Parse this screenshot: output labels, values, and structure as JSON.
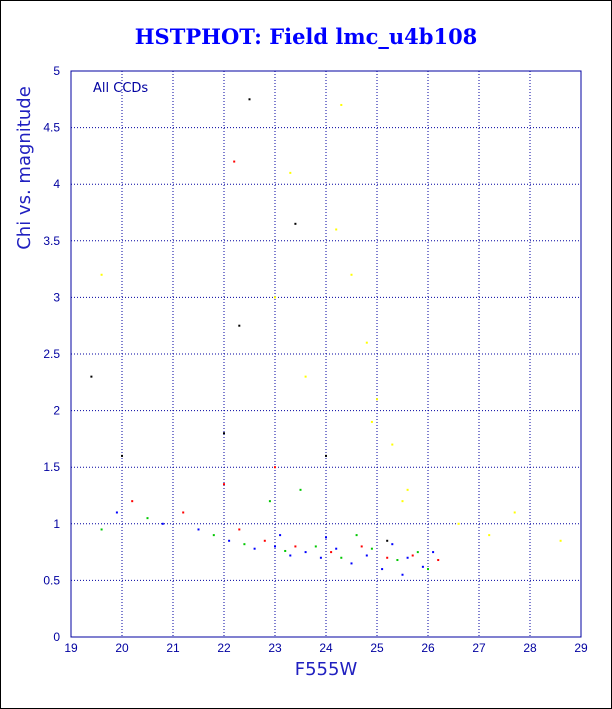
{
  "colors": {
    "title": "#0000ff",
    "axes": "#0000a0",
    "grid": "#0000a0",
    "points": [
      "#0000ff",
      "#00c800",
      "#ff0000",
      "#ffff00",
      "#000000"
    ]
  },
  "chart_data": {
    "type": "scatter",
    "title": "HSTPHOT: Field lmc_u4b108",
    "xlabel": "F555W",
    "ylabel": "Chi vs. magnitude",
    "annotation": "All CCDs",
    "xlim": [
      19,
      29
    ],
    "ylim": [
      0,
      5
    ],
    "xticks": [
      19,
      20,
      21,
      22,
      23,
      24,
      25,
      26,
      27,
      28,
      29
    ],
    "yticks": [
      "0",
      "0.5",
      "1",
      "1.5",
      "2",
      "2.5",
      "3",
      "3.5",
      "4",
      "4.5",
      "5"
    ],
    "grid": true,
    "series": [
      {
        "color": "#0000ff",
        "points": [
          [
            22.1,
            0.85
          ],
          [
            22.6,
            0.78
          ],
          [
            23.0,
            0.8
          ],
          [
            23.3,
            0.72
          ],
          [
            23.6,
            0.75
          ],
          [
            23.9,
            0.7
          ],
          [
            24.2,
            0.78
          ],
          [
            24.5,
            0.65
          ],
          [
            24.8,
            0.72
          ],
          [
            25.1,
            0.6
          ],
          [
            25.3,
            0.82
          ],
          [
            25.6,
            0.7
          ],
          [
            25.9,
            0.62
          ],
          [
            26.1,
            0.75
          ],
          [
            21.5,
            0.95
          ],
          [
            20.8,
            1.0
          ],
          [
            19.9,
            1.1
          ],
          [
            23.1,
            0.9
          ],
          [
            24.0,
            0.88
          ],
          [
            25.5,
            0.55
          ]
        ]
      },
      {
        "color": "#00c800",
        "points": [
          [
            21.8,
            0.9
          ],
          [
            22.4,
            0.82
          ],
          [
            23.2,
            0.76
          ],
          [
            23.8,
            0.8
          ],
          [
            24.3,
            0.7
          ],
          [
            24.9,
            0.78
          ],
          [
            25.4,
            0.68
          ],
          [
            25.8,
            0.75
          ],
          [
            26.0,
            0.6
          ],
          [
            20.5,
            1.05
          ],
          [
            19.6,
            0.95
          ],
          [
            22.9,
            1.2
          ],
          [
            23.5,
            1.3
          ],
          [
            24.6,
            0.9
          ]
        ]
      },
      {
        "color": "#ff0000",
        "points": [
          [
            22.3,
            0.95
          ],
          [
            22.8,
            0.85
          ],
          [
            23.4,
            0.8
          ],
          [
            24.1,
            0.75
          ],
          [
            24.7,
            0.8
          ],
          [
            25.2,
            0.7
          ],
          [
            25.7,
            0.72
          ],
          [
            26.2,
            0.68
          ],
          [
            21.2,
            1.1
          ],
          [
            20.2,
            1.2
          ],
          [
            22.2,
            4.2
          ],
          [
            22.0,
            1.35
          ],
          [
            23.0,
            1.5
          ]
        ]
      },
      {
        "color": "#ffff00",
        "points": [
          [
            23.3,
            4.1
          ],
          [
            24.3,
            4.7
          ],
          [
            24.5,
            3.2
          ],
          [
            24.8,
            2.6
          ],
          [
            25.0,
            2.1
          ],
          [
            24.2,
            3.6
          ],
          [
            23.6,
            2.3
          ],
          [
            25.3,
            1.7
          ],
          [
            25.6,
            1.3
          ],
          [
            26.6,
            1.0
          ],
          [
            27.2,
            0.9
          ],
          [
            27.7,
            1.1
          ],
          [
            28.6,
            0.85
          ],
          [
            19.6,
            3.2
          ],
          [
            23.0,
            3.0
          ],
          [
            24.9,
            1.9
          ],
          [
            25.5,
            1.2
          ]
        ]
      },
      {
        "color": "#000000",
        "points": [
          [
            22.5,
            4.75
          ],
          [
            19.4,
            2.3
          ],
          [
            23.4,
            3.65
          ],
          [
            22.3,
            2.75
          ],
          [
            24.0,
            1.6
          ],
          [
            25.2,
            0.85
          ],
          [
            20.0,
            1.6
          ],
          [
            22.0,
            1.8
          ]
        ]
      }
    ]
  }
}
